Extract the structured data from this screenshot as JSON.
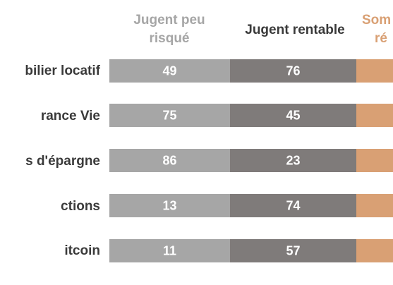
{
  "chart_data": {
    "type": "bar",
    "orientation": "horizontal",
    "stacked": true,
    "categories": [
      "Immobilier locatif",
      "Assurance Vie",
      "Livrets d'épargne",
      "Actions",
      "Bitcoin"
    ],
    "series": [
      {
        "name": "Jugent peu risqué",
        "color": "#a6a6a6",
        "values": [
          49,
          75,
          86,
          13,
          11
        ]
      },
      {
        "name": "Jugent rentable",
        "color": "#7f7b7a",
        "values": [
          76,
          45,
          23,
          74,
          57
        ]
      },
      {
        "name": "Sont réputés",
        "color": "#d9a074",
        "values": [
          null,
          null,
          null,
          null,
          null
        ]
      }
    ],
    "legend_lines": [
      [
        "Jugent peu",
        "risqué"
      ],
      [
        "Jugent rentable"
      ],
      [
        "Som",
        "ré"
      ]
    ],
    "visible_category_text": [
      "bilier locatif",
      "rance Vie",
      "s d'épargne",
      "ctions",
      "itcoin"
    ],
    "legend_position": "top",
    "data_labels": true,
    "grid": false
  }
}
